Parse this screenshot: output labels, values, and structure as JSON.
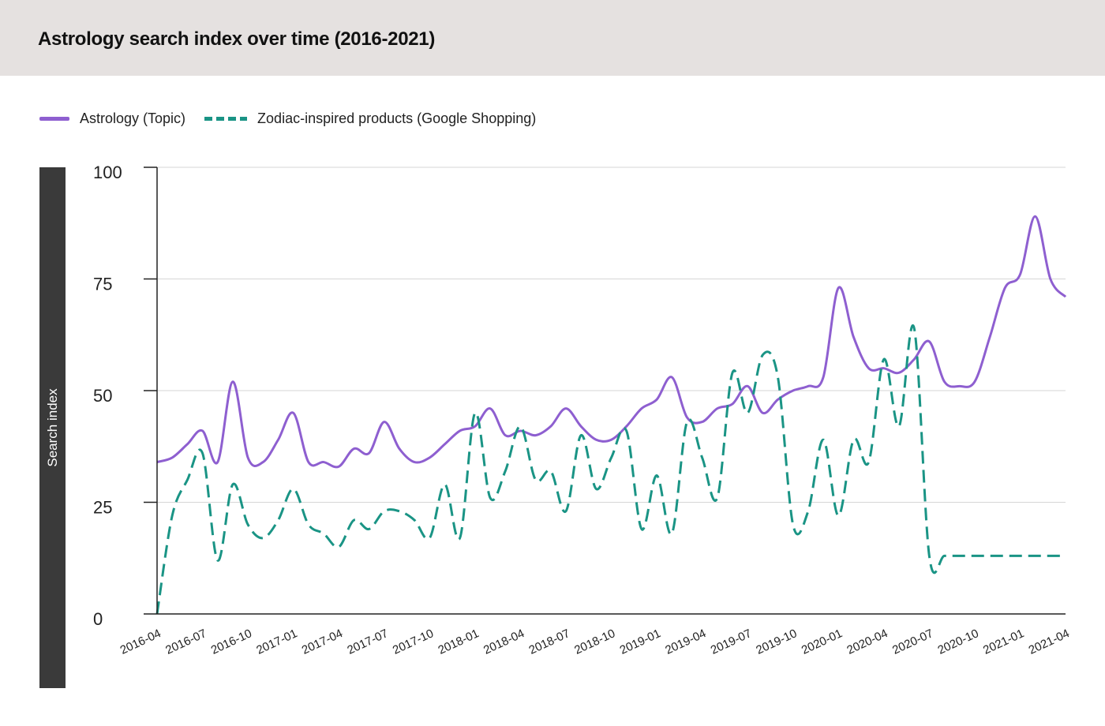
{
  "title": "Astrology search index over time (2016-2021)",
  "legend": {
    "series1": "Astrology (Topic)",
    "series2": "Zodiac-inspired products (Google Shopping)"
  },
  "colors": {
    "header_bg": "#e5e1e0",
    "astrology": "#8e5fd0",
    "zodiac": "#1a9485",
    "ylabel_bg": "#3a3a3a"
  },
  "chart_data": {
    "type": "line",
    "title": "Astrology search index over time (2016-2021)",
    "xlabel": "",
    "ylabel": "Search index",
    "ylim": [
      0,
      100
    ],
    "yticks": [
      0,
      25,
      50,
      75,
      100
    ],
    "grid": true,
    "legend_position": "top-left",
    "xlim": [
      "2016-04",
      "2021-04"
    ],
    "xtick_labels": [
      "2016-04",
      "2016-07",
      "2016-10",
      "2017-01",
      "2017-04",
      "2017-07",
      "2017-10",
      "2018-01",
      "2018-04",
      "2018-07",
      "2018-10",
      "2019-01",
      "2019-04",
      "2019-07",
      "2019-10",
      "2020-01",
      "2020-04",
      "2020-07",
      "2020-10",
      "2021-01",
      "2021-04"
    ],
    "series": [
      {
        "name": "Astrology (Topic)",
        "style": "solid",
        "x": [
          "2016-04",
          "2016-05",
          "2016-06",
          "2016-07",
          "2016-08",
          "2016-09",
          "2016-10",
          "2016-11",
          "2016-12",
          "2017-01",
          "2017-02",
          "2017-03",
          "2017-04",
          "2017-05",
          "2017-06",
          "2017-07",
          "2017-08",
          "2017-09",
          "2017-10",
          "2017-11",
          "2017-12",
          "2018-01",
          "2018-02",
          "2018-03",
          "2018-04",
          "2018-05",
          "2018-06",
          "2018-07",
          "2018-08",
          "2018-09",
          "2018-10",
          "2018-11",
          "2018-12",
          "2019-01",
          "2019-02",
          "2019-03",
          "2019-04",
          "2019-05",
          "2019-06",
          "2019-07",
          "2019-08",
          "2019-09",
          "2019-10",
          "2019-11",
          "2019-12",
          "2020-01",
          "2020-02",
          "2020-03",
          "2020-04",
          "2020-05",
          "2020-06",
          "2020-07",
          "2020-08",
          "2020-09",
          "2020-10",
          "2020-11",
          "2020-12",
          "2021-01",
          "2021-02",
          "2021-03",
          "2021-04"
        ],
        "values": [
          34,
          35,
          38,
          41,
          34,
          52,
          35,
          34,
          39,
          45,
          34,
          34,
          33,
          37,
          36,
          43,
          37,
          34,
          35,
          38,
          41,
          42,
          46,
          40,
          41,
          40,
          42,
          46,
          42,
          39,
          39,
          42,
          46,
          48,
          53,
          44,
          43,
          46,
          47,
          51,
          45,
          48,
          50,
          51,
          53,
          73,
          62,
          55,
          55,
          54,
          57,
          61,
          52,
          51,
          52,
          62,
          73,
          76,
          89,
          75,
          71
        ]
      },
      {
        "name": "Zodiac-inspired products (Google Shopping)",
        "style": "dashed",
        "x": [
          "2016-04",
          "2016-05",
          "2016-06",
          "2016-07",
          "2016-08",
          "2016-09",
          "2016-10",
          "2016-11",
          "2016-12",
          "2017-01",
          "2017-02",
          "2017-03",
          "2017-04",
          "2017-05",
          "2017-06",
          "2017-07",
          "2017-08",
          "2017-09",
          "2017-10",
          "2017-11",
          "2017-12",
          "2018-01",
          "2018-02",
          "2018-03",
          "2018-04",
          "2018-05",
          "2018-06",
          "2018-07",
          "2018-08",
          "2018-09",
          "2018-10",
          "2018-11",
          "2018-12",
          "2019-01",
          "2019-02",
          "2019-03",
          "2019-04",
          "2019-05",
          "2019-06",
          "2019-07",
          "2019-08",
          "2019-09",
          "2019-10",
          "2019-11",
          "2019-12",
          "2020-01",
          "2020-02",
          "2020-03",
          "2020-04",
          "2020-05",
          "2020-06",
          "2020-07",
          "2020-08",
          "2020-09",
          "2020-10",
          "2020-11",
          "2020-12",
          "2021-01",
          "2021-02",
          "2021-03",
          "2021-04"
        ],
        "values": [
          0,
          22,
          30,
          36,
          12,
          29,
          20,
          17,
          21,
          28,
          20,
          18,
          15,
          21,
          19,
          23,
          23,
          21,
          17,
          29,
          17,
          45,
          26,
          32,
          42,
          30,
          32,
          23,
          40,
          28,
          35,
          41,
          19,
          31,
          18,
          43,
          35,
          26,
          54,
          45,
          58,
          53,
          20,
          23,
          39,
          22,
          39,
          34,
          57,
          42,
          64,
          13,
          13,
          13,
          13,
          13,
          13,
          13,
          13,
          13,
          13
        ]
      }
    ]
  }
}
